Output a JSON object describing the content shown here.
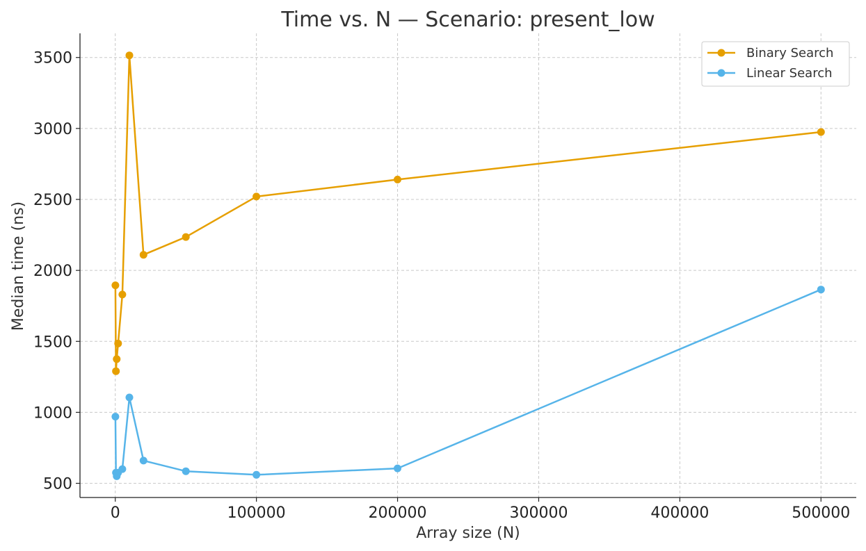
{
  "chart_data": {
    "type": "line",
    "title": "Time vs. N — Scenario: present_low",
    "xlabel": "Array size (N)",
    "ylabel": "Median time (ns)",
    "xlim": [
      -25000,
      525000
    ],
    "ylim": [
      400,
      3670
    ],
    "xticks": [
      0,
      100000,
      200000,
      300000,
      400000,
      500000
    ],
    "yticks": [
      500,
      1000,
      1500,
      2000,
      2500,
      3000,
      3500
    ],
    "grid": true,
    "legend_position": "top-right",
    "series": [
      {
        "name": "Binary Search",
        "color": "#E69F00",
        "points": [
          [
            100,
            1895
          ],
          [
            500,
            1290
          ],
          [
            1000,
            1375
          ],
          [
            2000,
            1485
          ],
          [
            5000,
            1830
          ],
          [
            10000,
            3515
          ],
          [
            20000,
            2110
          ],
          [
            50000,
            2235
          ],
          [
            100000,
            2520
          ],
          [
            200000,
            2640
          ],
          [
            500000,
            2975
          ]
        ]
      },
      {
        "name": "Linear Search",
        "color": "#56B4E9",
        "points": [
          [
            100,
            970
          ],
          [
            500,
            575
          ],
          [
            1000,
            550
          ],
          [
            2000,
            575
          ],
          [
            5000,
            600
          ],
          [
            10000,
            1105
          ],
          [
            20000,
            660
          ],
          [
            50000,
            585
          ],
          [
            100000,
            560
          ],
          [
            200000,
            605
          ],
          [
            500000,
            1865
          ]
        ]
      }
    ]
  }
}
